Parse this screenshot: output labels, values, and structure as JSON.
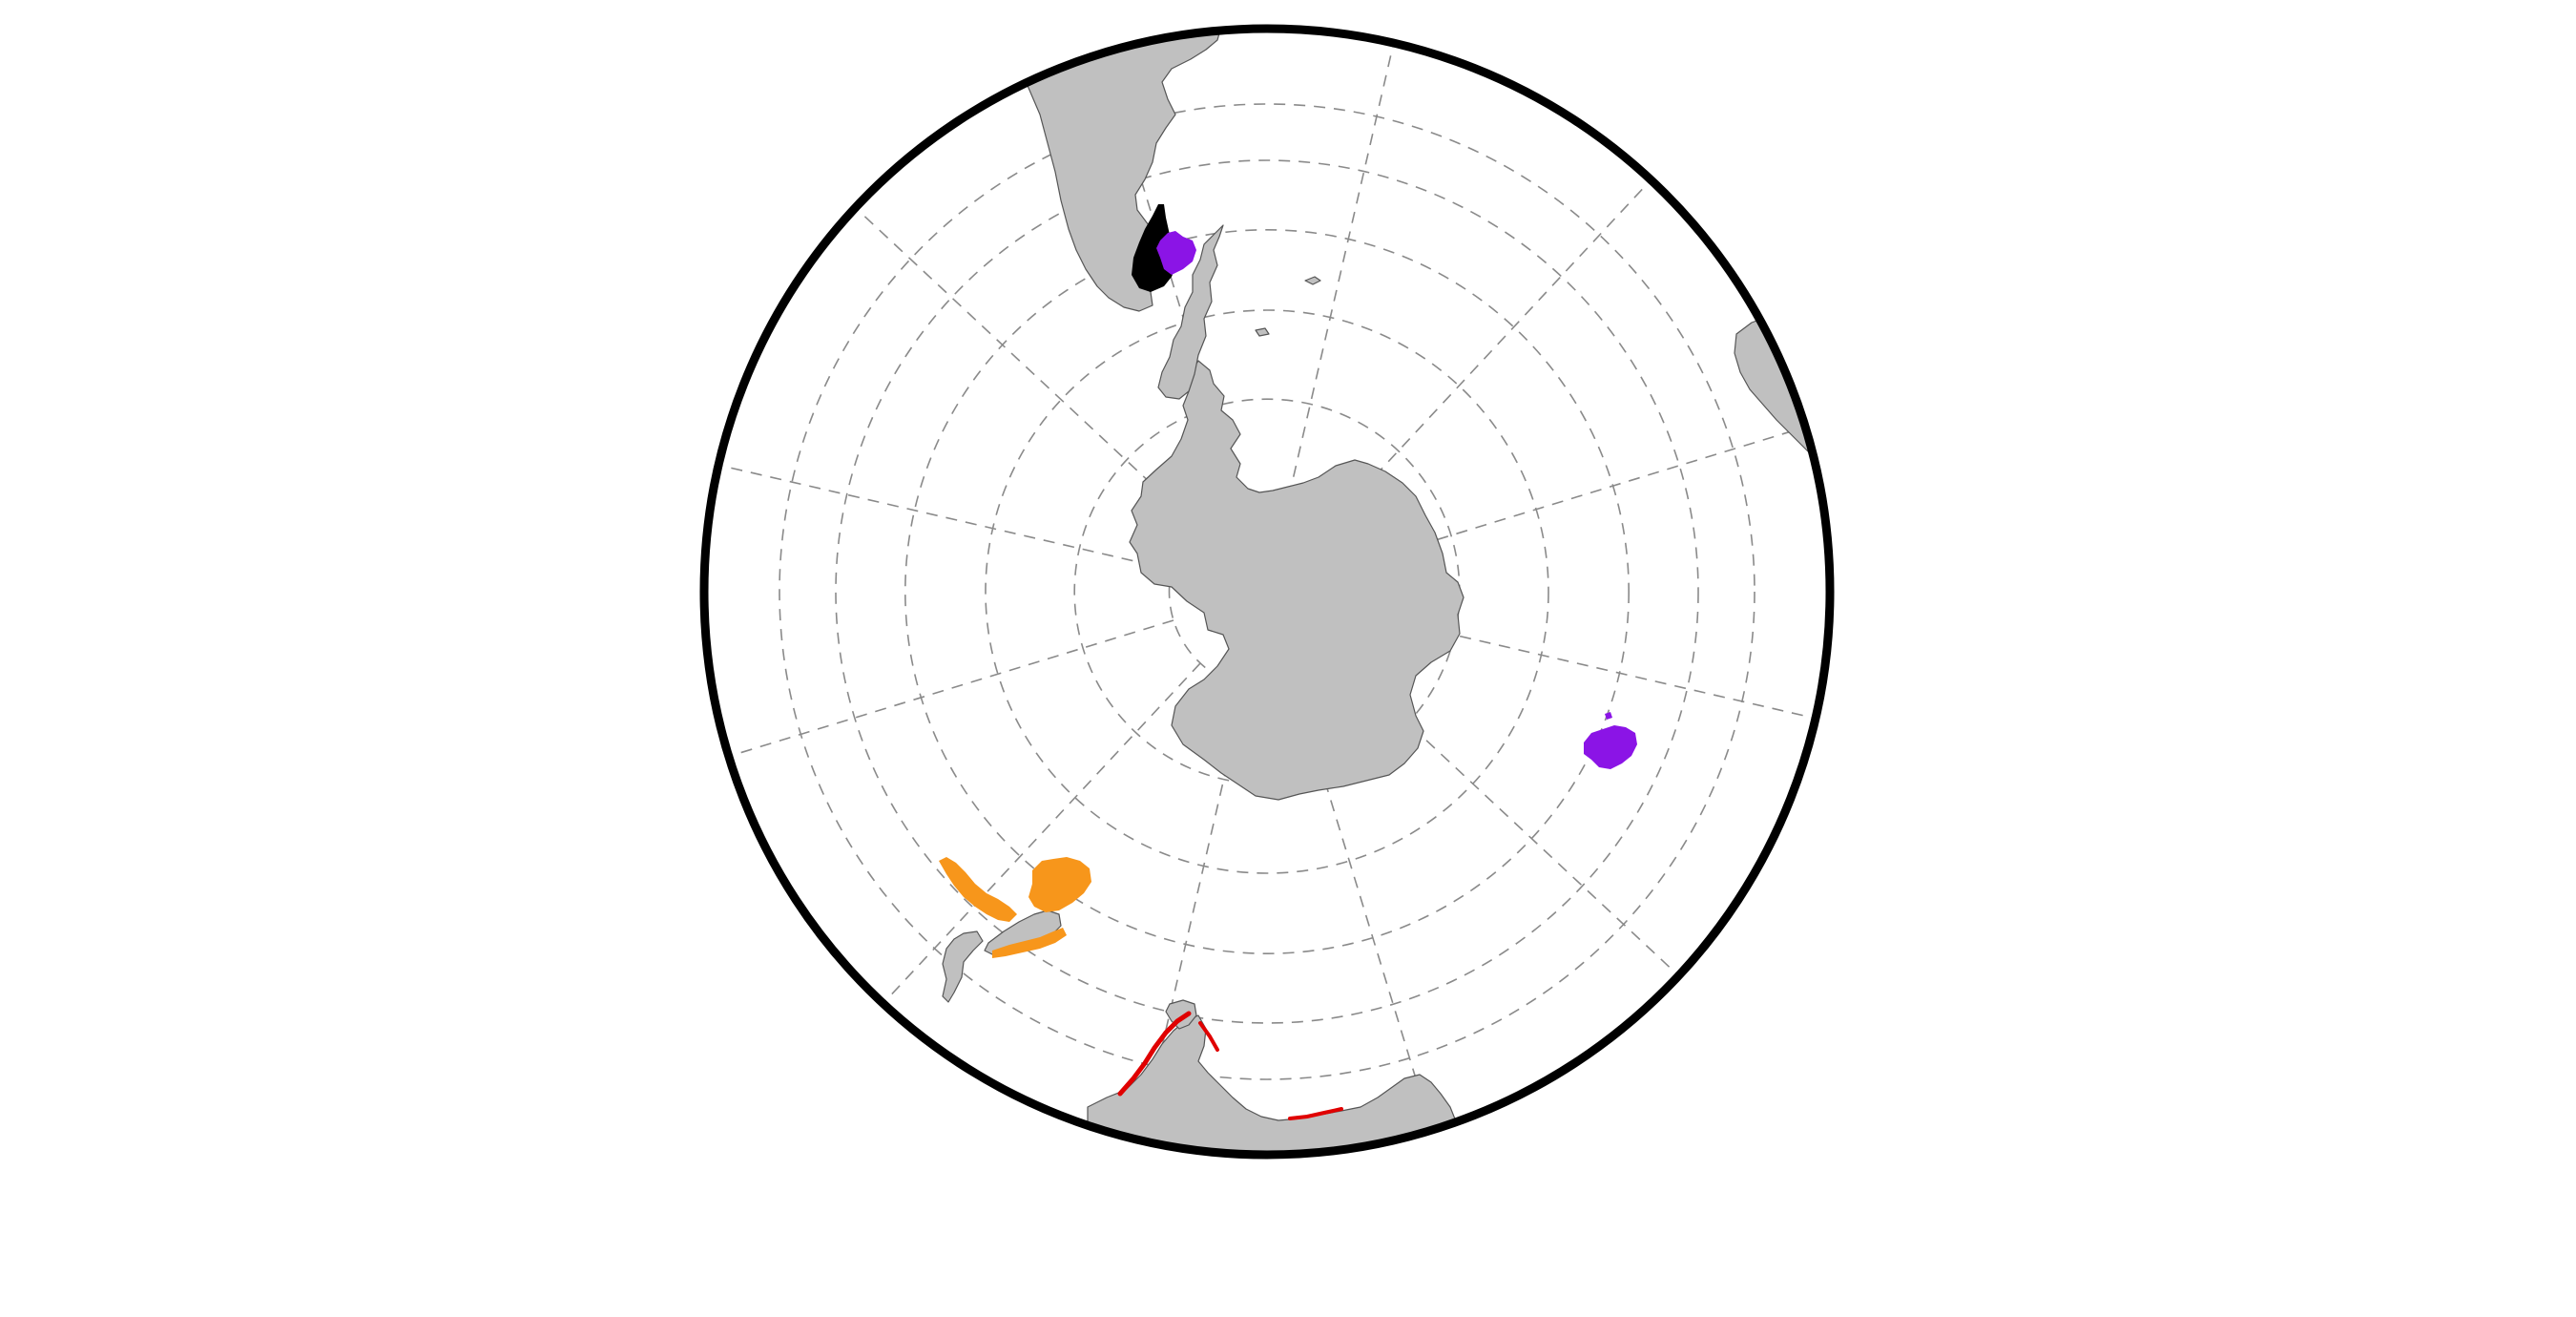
{
  "map": {
    "projection": "south-polar-orthographic",
    "graticule": {
      "parallels_deg": [
        -80,
        -70,
        -60,
        -50,
        -40,
        -30
      ],
      "meridian_step_deg": 30,
      "style": "dashed"
    },
    "colors": {
      "background": "#ffffff",
      "land_fill": "#c0c0c0",
      "land_stroke": "#555555",
      "grid": "#8a8a8a",
      "frame": "#000000"
    },
    "regions": [
      {
        "name": "antarctica",
        "type": "land",
        "color": "#c0c0c0"
      },
      {
        "name": "south-america",
        "type": "land",
        "color": "#c0c0c0"
      },
      {
        "name": "africa",
        "type": "land",
        "color": "#c0c0c0"
      },
      {
        "name": "australia",
        "type": "land",
        "color": "#c0c0c0"
      },
      {
        "name": "new-zealand",
        "type": "land",
        "color": "#c0c0c0"
      },
      {
        "name": "south-georgia",
        "type": "land",
        "color": "#c0c0c0"
      }
    ],
    "overlays": [
      {
        "name": "falklands-black-area",
        "color": "#000000"
      },
      {
        "name": "falklands-purple-area",
        "color": "#8b14e6"
      },
      {
        "name": "kerguelen-purple-area",
        "color": "#8b14e6"
      },
      {
        "name": "new-zealand-orange-areas",
        "color": "#f7961b"
      },
      {
        "name": "southern-australia-red-coast",
        "color": "#e00000"
      }
    ]
  }
}
